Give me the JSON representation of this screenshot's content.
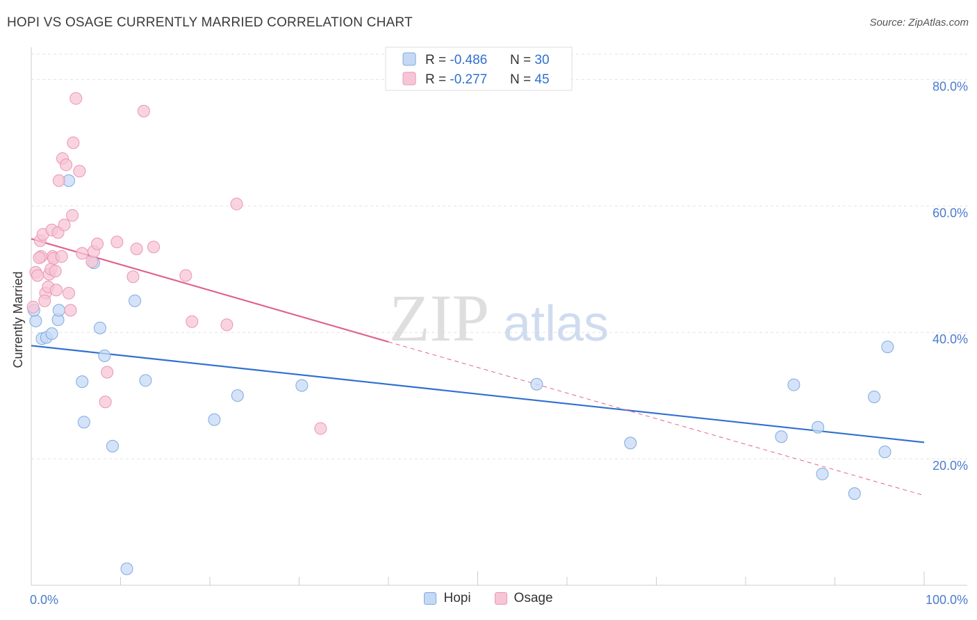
{
  "header": {
    "title": "HOPI VS OSAGE CURRENTLY MARRIED CORRELATION CHART",
    "source": "Source: ZipAtlas.com"
  },
  "watermark": {
    "zip": "ZIP",
    "atlas": "atlas"
  },
  "colors": {
    "hopi_fill": "#c5d9f5",
    "hopi_stroke": "#7fa9e0",
    "hopi_line": "#2f6fd0",
    "osage_fill": "#f7c6d6",
    "osage_stroke": "#e995b1",
    "osage_line": "#e0638c",
    "grid": "#e2e2e2",
    "axis_label": "#4a7ccc"
  },
  "chart_data": {
    "type": "scatter",
    "title": "HOPI VS OSAGE CURRENTLY MARRIED CORRELATION CHART",
    "xlabel": "",
    "ylabel": "Currently Married",
    "xlim": [
      0,
      100
    ],
    "ylim": [
      0,
      84
    ],
    "x_tick_labels": [
      "0.0%",
      "100.0%"
    ],
    "y_ticks": [
      20,
      40,
      60,
      80
    ],
    "y_tick_labels": [
      "20.0%",
      "40.0%",
      "60.0%",
      "80.0%"
    ],
    "grid": true,
    "legend_position": "top-center",
    "stats": [
      {
        "series": "Hopi",
        "r_label": "R = ",
        "r_value": "-0.486",
        "n_label": "N = ",
        "n_value": "30"
      },
      {
        "series": "Osage",
        "r_label": "R = ",
        "r_value": "-0.277",
        "n_label": "N = ",
        "n_value": "45"
      }
    ],
    "series": [
      {
        "name": "Hopi",
        "points": [
          [
            0.5,
            41.8
          ],
          [
            1.2,
            39.0
          ],
          [
            1.7,
            39.2
          ],
          [
            2.3,
            39.8
          ],
          [
            3.0,
            42.0
          ],
          [
            3.1,
            43.5
          ],
          [
            4.2,
            64.0
          ],
          [
            7.0,
            51.0
          ],
          [
            5.7,
            32.2
          ],
          [
            5.9,
            25.8
          ],
          [
            7.7,
            40.7
          ],
          [
            8.2,
            36.3
          ],
          [
            9.1,
            22.0
          ],
          [
            11.6,
            45.0
          ],
          [
            12.8,
            32.4
          ],
          [
            10.7,
            2.6
          ],
          [
            20.5,
            26.2
          ],
          [
            23.1,
            30.0
          ],
          [
            30.3,
            31.6
          ],
          [
            56.6,
            31.8
          ],
          [
            67.1,
            22.5
          ],
          [
            85.4,
            31.7
          ],
          [
            84.0,
            23.5
          ],
          [
            88.1,
            25.0
          ],
          [
            88.6,
            17.6
          ],
          [
            92.2,
            14.5
          ],
          [
            94.4,
            29.8
          ],
          [
            95.6,
            21.1
          ],
          [
            95.9,
            37.7
          ],
          [
            0.3,
            43.5
          ]
        ],
        "trend": {
          "x": [
            0,
            100
          ],
          "y": [
            37.9,
            22.6
          ]
        }
      },
      {
        "name": "Osage",
        "points": [
          [
            0.2,
            44.0
          ],
          [
            0.5,
            49.5
          ],
          [
            0.7,
            49.0
          ],
          [
            1.0,
            54.5
          ],
          [
            1.1,
            52.0
          ],
          [
            1.3,
            55.5
          ],
          [
            1.6,
            46.2
          ],
          [
            1.9,
            47.2
          ],
          [
            2.0,
            49.2
          ],
          [
            2.2,
            50.0
          ],
          [
            2.3,
            56.2
          ],
          [
            2.4,
            52.0
          ],
          [
            2.5,
            51.7
          ],
          [
            2.7,
            49.7
          ],
          [
            2.8,
            46.7
          ],
          [
            3.0,
            55.8
          ],
          [
            3.1,
            64.0
          ],
          [
            3.4,
            52.0
          ],
          [
            3.5,
            67.5
          ],
          [
            3.7,
            57.0
          ],
          [
            3.9,
            66.5
          ],
          [
            4.2,
            46.2
          ],
          [
            4.4,
            43.5
          ],
          [
            4.6,
            58.5
          ],
          [
            4.7,
            70.0
          ],
          [
            5.0,
            77.0
          ],
          [
            5.4,
            65.5
          ],
          [
            5.7,
            52.5
          ],
          [
            6.8,
            51.2
          ],
          [
            7.0,
            52.8
          ],
          [
            7.4,
            54.0
          ],
          [
            8.5,
            33.7
          ],
          [
            8.3,
            29.0
          ],
          [
            9.6,
            54.3
          ],
          [
            11.4,
            48.8
          ],
          [
            11.8,
            53.2
          ],
          [
            12.6,
            75.0
          ],
          [
            13.7,
            53.5
          ],
          [
            17.3,
            49.0
          ],
          [
            18.0,
            41.7
          ],
          [
            21.9,
            41.2
          ],
          [
            23.0,
            60.3
          ],
          [
            32.4,
            24.8
          ],
          [
            0.9,
            51.8
          ],
          [
            1.5,
            45.0
          ]
        ],
        "trend": {
          "x": [
            0,
            40
          ],
          "y": [
            54.8,
            38.5
          ]
        },
        "trend_dashed": {
          "x": [
            40,
            100
          ],
          "y": [
            38.5,
            14.2
          ]
        }
      }
    ]
  }
}
